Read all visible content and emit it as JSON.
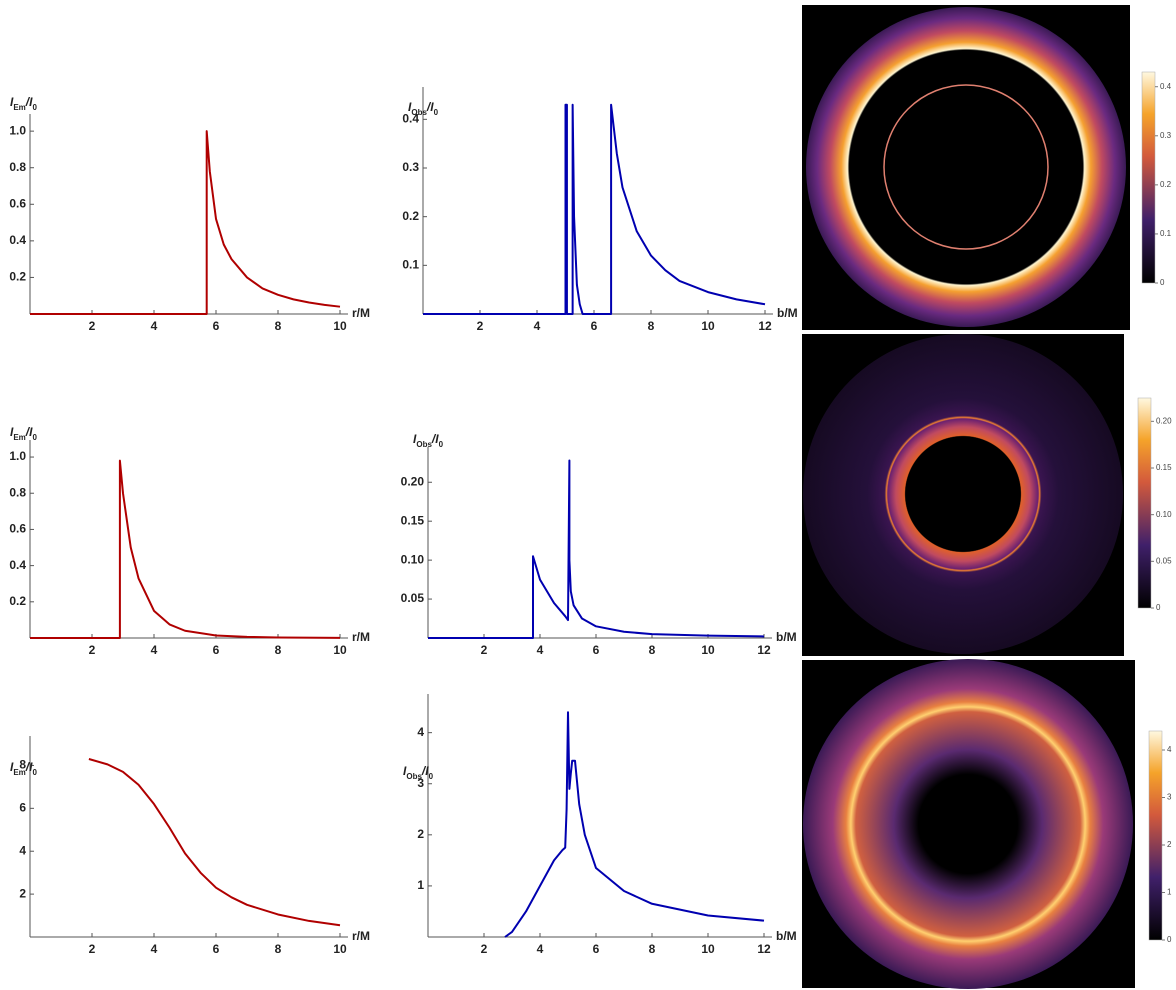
{
  "chart_data": [
    {
      "type": "line",
      "x_label": "r/M",
      "y_label": [
        "I",
        "Em",
        "/I",
        "0"
      ],
      "xlim": [
        0,
        10
      ],
      "xticks": [
        2,
        4,
        6,
        8,
        10
      ],
      "ylim": [
        0,
        1.05
      ],
      "yticks": [
        0.2,
        0.4,
        0.6,
        0.8,
        {
          "value": 1,
          "label": "1.0"
        }
      ],
      "color": "#b00000",
      "x": [
        0,
        5.7,
        5.7,
        5.8,
        6,
        6.25,
        6.5,
        7,
        7.5,
        8,
        8.5,
        9,
        9.5,
        10
      ],
      "values": [
        0,
        0,
        1,
        0.78,
        0.52,
        0.38,
        0.3,
        0.2,
        0.14,
        0.105,
        0.08,
        0.063,
        0.05,
        0.04
      ]
    },
    {
      "type": "line",
      "x_label": "b/M",
      "y_label": [
        "I",
        "Obs",
        "/I",
        "0"
      ],
      "xlim": [
        0,
        12
      ],
      "xticks": [
        2,
        4,
        6,
        8,
        10,
        12
      ],
      "ylim": [
        0,
        0.45
      ],
      "yticks": [
        0.1,
        0.2,
        0.3,
        0.4
      ],
      "color": "#0000b0",
      "x": [
        0,
        5.0,
        5.0,
        5.05,
        5.05,
        5.25,
        5.25,
        5.3,
        5.4,
        5.5,
        5.6,
        6.6,
        6.6,
        6.8,
        7,
        7.5,
        8,
        8.5,
        9,
        10,
        11,
        12
      ],
      "values": [
        0,
        0,
        0.43,
        0.43,
        0,
        0,
        0.43,
        0.2,
        0.06,
        0.02,
        0,
        0,
        0.43,
        0.33,
        0.26,
        0.17,
        0.12,
        0.09,
        0.068,
        0.045,
        0.03,
        0.02
      ]
    },
    {
      "type": "image",
      "colorbar": {
        "clim": [
          0,
          0.43
        ],
        "ticks": [
          0,
          0.1,
          0.2,
          0.3,
          0.4
        ]
      }
    },
    {
      "type": "line",
      "x_label": "r/M",
      "y_label": [
        "I",
        "Em",
        "/I",
        "0"
      ],
      "xlim": [
        0,
        10
      ],
      "xticks": [
        2,
        4,
        6,
        8,
        10
      ],
      "ylim": [
        0,
        1.05
      ],
      "yticks": [
        0.2,
        0.4,
        0.6,
        0.8,
        {
          "value": 1,
          "label": "1.0"
        }
      ],
      "color": "#b00000",
      "x": [
        0,
        2.9,
        2.9,
        3,
        3.25,
        3.5,
        4,
        4.5,
        5,
        6,
        7,
        8,
        10
      ],
      "values": [
        0,
        0,
        0.98,
        0.8,
        0.5,
        0.33,
        0.15,
        0.075,
        0.04,
        0.014,
        0.006,
        0.003,
        0.001
      ]
    },
    {
      "type": "line",
      "x_label": "b/M",
      "y_label": [
        "I",
        "Obs",
        "/I",
        "0"
      ],
      "xlim": [
        0,
        12
      ],
      "xticks": [
        2,
        4,
        6,
        8,
        10,
        12
      ],
      "ylim": [
        0,
        0.235
      ],
      "yticks": [
        0.05,
        {
          "value": 0.1,
          "label": "0.10"
        },
        0.15,
        {
          "value": 0.2,
          "label": "0.20"
        }
      ],
      "color": "#0000b0",
      "x": [
        0,
        3.75,
        3.75,
        4,
        4.5,
        4.9,
        5.0,
        5.05,
        5.05,
        5.1,
        5.2,
        5.5,
        6,
        7,
        8,
        10,
        12
      ],
      "values": [
        0,
        0,
        0.105,
        0.075,
        0.045,
        0.028,
        0.023,
        0.228,
        0.1,
        0.06,
        0.042,
        0.025,
        0.015,
        0.008,
        0.005,
        0.003,
        0.002
      ]
    },
    {
      "type": "image",
      "colorbar": {
        "clim": [
          0,
          0.225
        ],
        "ticks": [
          0,
          0.05,
          {
            "value": 0.1,
            "label": "0.10"
          },
          0.15,
          {
            "value": 0.2,
            "label": "0.20"
          }
        ]
      }
    },
    {
      "type": "line",
      "x_label": "r/M",
      "y_label": [
        "I",
        "Em",
        "/I",
        "0"
      ],
      "xlim": [
        0,
        10
      ],
      "xticks": [
        2,
        4,
        6,
        8,
        10
      ],
      "ylim": [
        0,
        9
      ],
      "yticks": [
        2,
        4,
        6,
        8
      ],
      "color": "#b00000",
      "x": [
        1.9,
        2.5,
        3,
        3.5,
        4,
        4.5,
        5,
        5.5,
        6,
        6.5,
        7,
        8,
        9,
        10
      ],
      "values": [
        8.3,
        8.05,
        7.7,
        7.1,
        6.2,
        5.1,
        3.9,
        3.0,
        2.3,
        1.85,
        1.5,
        1.05,
        0.75,
        0.55
      ]
    },
    {
      "type": "line",
      "x_label": "b/M",
      "y_label": [
        "I",
        "Obs",
        "/I",
        "0"
      ],
      "xlim": [
        0,
        12
      ],
      "xticks": [
        2,
        4,
        6,
        8,
        10,
        12
      ],
      "ylim": [
        0,
        4.6
      ],
      "yticks": [
        1,
        2,
        3,
        4
      ],
      "color": "#0000b0",
      "x": [
        2.75,
        3,
        3.5,
        4,
        4.5,
        4.8,
        4.9,
        4.95,
        5.0,
        5.05,
        5.1,
        5.15,
        5.25,
        5.4,
        5.6,
        6,
        7,
        8,
        10,
        12
      ],
      "values": [
        0,
        0.1,
        0.5,
        1.0,
        1.5,
        1.7,
        1.75,
        2.5,
        4.4,
        2.9,
        3.2,
        3.45,
        3.45,
        2.6,
        2.0,
        1.35,
        0.9,
        0.65,
        0.42,
        0.32
      ]
    },
    {
      "type": "image",
      "colorbar": {
        "clim": [
          0,
          4.4
        ],
        "ticks": [
          0,
          1,
          2,
          3,
          4
        ]
      }
    }
  ]
}
